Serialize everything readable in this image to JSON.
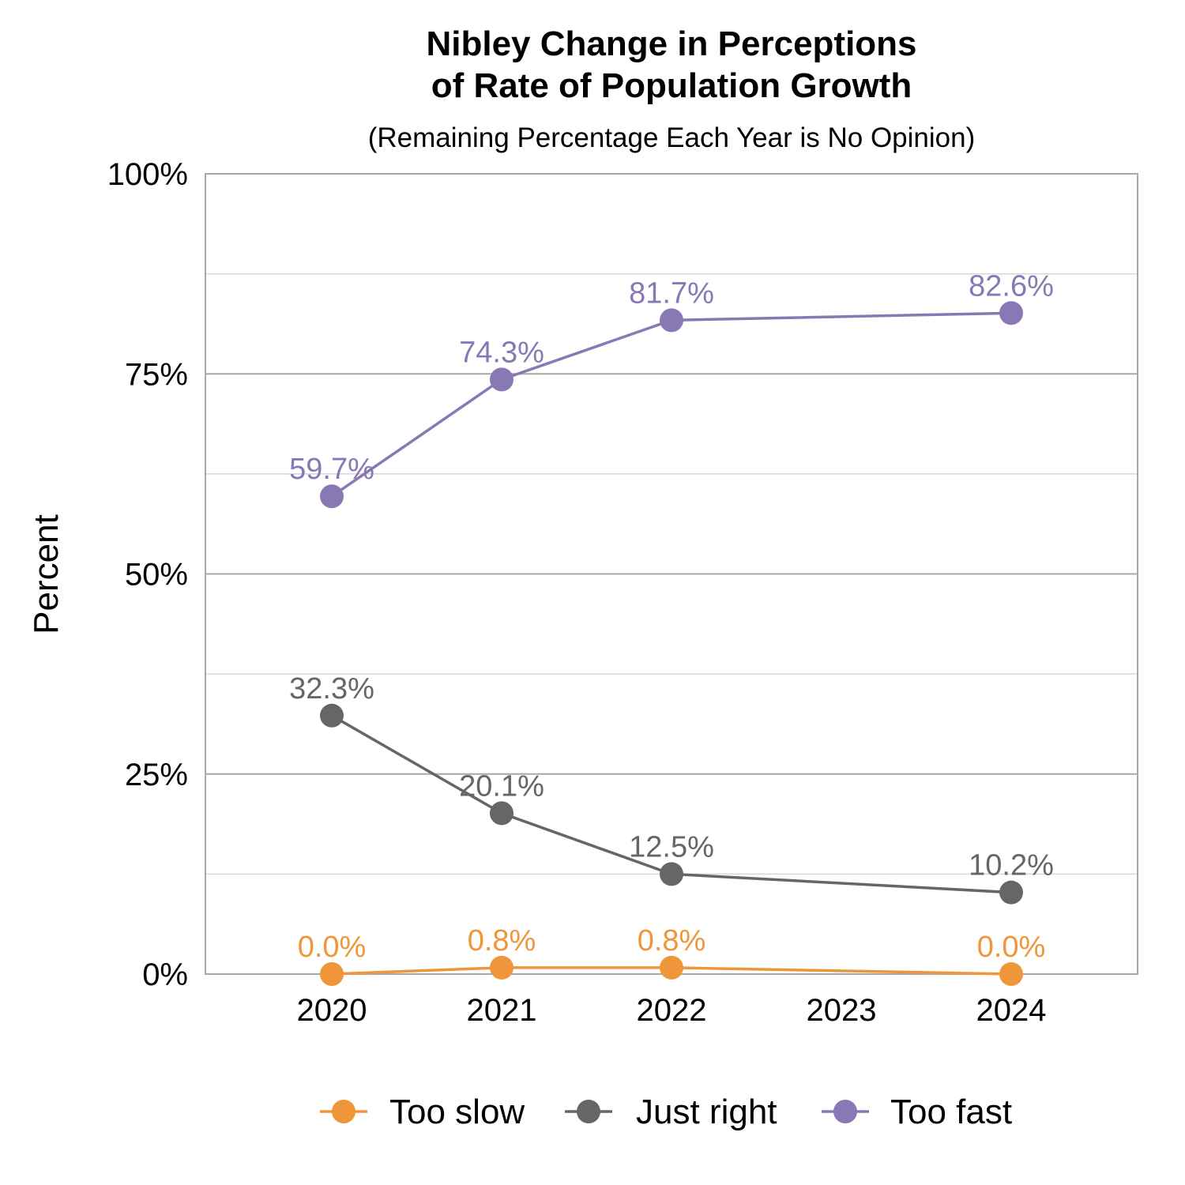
{
  "chart_data": {
    "type": "line",
    "title": [
      "Nibley Change in Perceptions",
      "of Rate of Population Growth"
    ],
    "subtitle": "(Remaining Percentage Each Year is No Opinion)",
    "xlabel": "",
    "ylabel": "Percent",
    "x": [
      2020,
      2021,
      2022,
      2024
    ],
    "x_ticks": [
      "2020",
      "2021",
      "2022",
      "2023",
      "2024"
    ],
    "y_ticks": [
      "0%",
      "25%",
      "50%",
      "75%",
      "100%"
    ],
    "ylim": [
      0,
      100
    ],
    "grid": true,
    "legend_position": "bottom",
    "series": [
      {
        "name": "Too slow",
        "color": "#F0963A",
        "values": [
          0.0,
          0.8,
          0.8,
          0.0
        ],
        "labels": [
          "0.0%",
          "0.8%",
          "0.8%",
          "0.0%"
        ]
      },
      {
        "name": "Just right",
        "color": "#666666",
        "values": [
          32.3,
          20.1,
          12.5,
          10.2
        ],
        "labels": [
          "32.3%",
          "20.1%",
          "12.5%",
          "10.2%"
        ]
      },
      {
        "name": "Too fast",
        "color": "#8879B5",
        "values": [
          59.7,
          74.3,
          81.7,
          82.6
        ],
        "labels": [
          "59.7%",
          "74.3%",
          "81.7%",
          "82.6%"
        ]
      }
    ]
  }
}
